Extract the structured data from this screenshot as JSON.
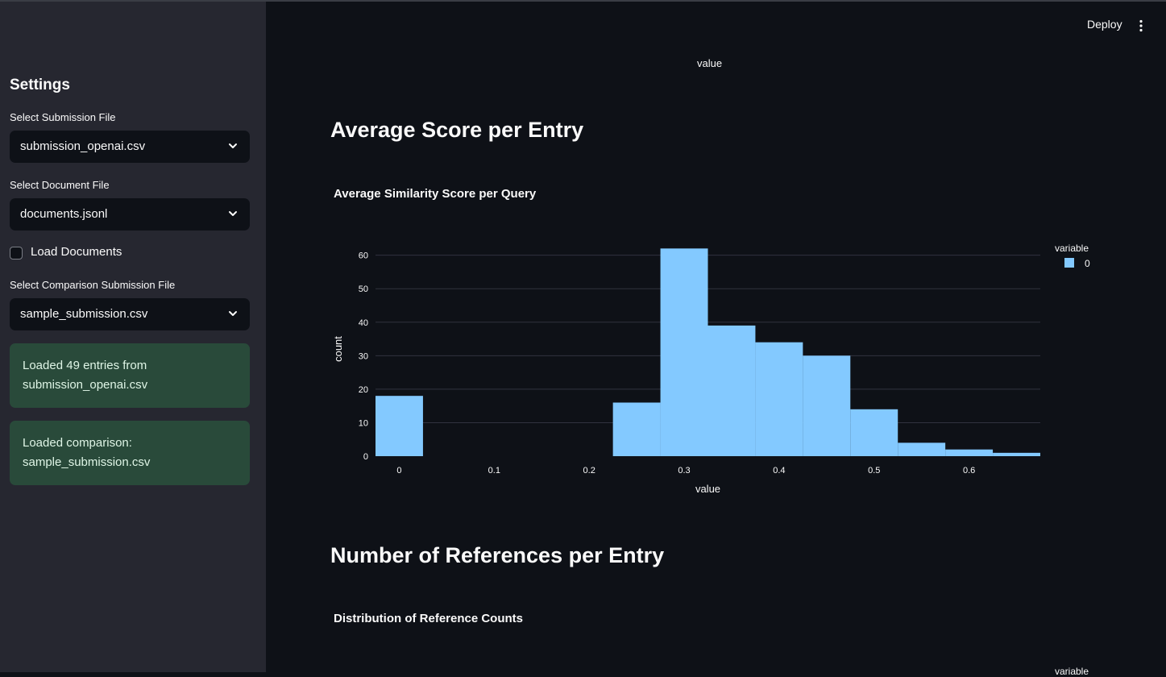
{
  "sidebar": {
    "title": "Settings",
    "submission_label": "Select Submission File",
    "submission_value": "submission_openai.csv",
    "document_label": "Select Document File",
    "document_value": "documents.jsonl",
    "load_documents_label": "Load Documents",
    "load_documents_checked": false,
    "comparison_label": "Select Comparison Submission File",
    "comparison_value": "sample_submission.csv",
    "alerts": [
      {
        "line1": "Loaded 49 entries from",
        "line2": "submission_openai.csv"
      },
      {
        "line1": "Loaded comparison:",
        "line2": "sample_submission.csv"
      }
    ]
  },
  "header": {
    "deploy_label": "Deploy",
    "menu_icon": "kebab-menu-icon"
  },
  "main": {
    "top_axis_label": "value",
    "section1_title": "Average Score per Entry",
    "chart1_title": "Average Similarity Score per Query",
    "section2_title": "Number of References per Entry",
    "chart2_title": "Distribution of Reference Counts",
    "chart2_legend_title": "variable"
  },
  "colors": {
    "bar": "#83c9ff",
    "background": "#0e1117",
    "sidebar": "#262730",
    "success": "#294a3a"
  },
  "chart_data": {
    "type": "bar",
    "title": "Average Similarity Score per Query",
    "xlabel": "value",
    "ylabel": "count",
    "legend_title": "variable",
    "legend_entries": [
      "0"
    ],
    "legend_position": "top-right",
    "grid": true,
    "xlim": [
      -0.025,
      0.675
    ],
    "ylim": [
      0,
      64
    ],
    "x_ticks": [
      "0",
      "0.1",
      "0.2",
      "0.3",
      "0.4",
      "0.5",
      "0.6"
    ],
    "y_ticks": [
      "0",
      "10",
      "20",
      "30",
      "40",
      "50",
      "60"
    ],
    "bins": [
      {
        "start": -0.025,
        "end": 0.025,
        "count": 18
      },
      {
        "start": 0.225,
        "end": 0.275,
        "count": 16
      },
      {
        "start": 0.275,
        "end": 0.325,
        "count": 62
      },
      {
        "start": 0.325,
        "end": 0.375,
        "count": 39
      },
      {
        "start": 0.375,
        "end": 0.425,
        "count": 34
      },
      {
        "start": 0.425,
        "end": 0.475,
        "count": 30
      },
      {
        "start": 0.475,
        "end": 0.525,
        "count": 14
      },
      {
        "start": 0.525,
        "end": 0.575,
        "count": 4
      },
      {
        "start": 0.575,
        "end": 0.625,
        "count": 2
      },
      {
        "start": 0.625,
        "end": 0.675,
        "count": 1
      }
    ]
  }
}
